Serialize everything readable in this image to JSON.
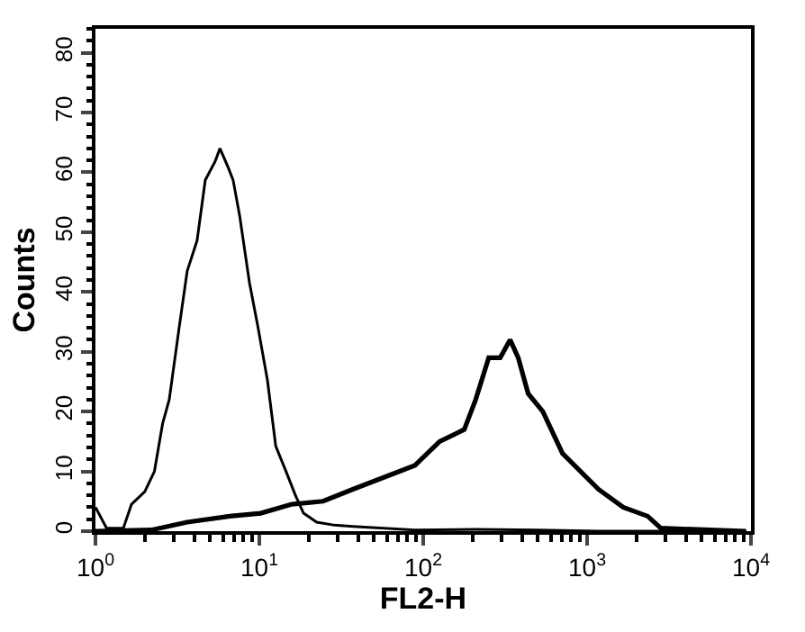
{
  "chart_data": {
    "type": "line",
    "xlabel": "FL2-H",
    "ylabel": "Counts",
    "log": "x",
    "marker": "none",
    "line_style": "solid",
    "xlim": [
      1,
      10000
    ],
    "xticks": [
      {
        "value": 1,
        "label": "10$^{0}$"
      },
      {
        "value": 10,
        "label": "10$^{1}$"
      },
      {
        "value": 100,
        "label": "10$^{2}$"
      },
      {
        "value": 1000,
        "label": "10$^{3}$"
      },
      {
        "value": 10000,
        "label": "10$^{4}$"
      }
    ],
    "ylim": [
      0,
      84
    ],
    "yticks": [
      0,
      10,
      20,
      30,
      40,
      50,
      60,
      70,
      80
    ],
    "series": [
      {
        "color": "#000000",
        "x": [
          1,
          1.17,
          1.48,
          1.66,
          2.0,
          2.29,
          2.57,
          2.82,
          3.24,
          3.63,
          4.17,
          4.68,
          5.37,
          5.75,
          6.46,
          6.92,
          7.59,
          8.71,
          9.77,
          11.2,
          12.6,
          14.5,
          16.6,
          18.6,
          22.4,
          28.8,
          37.2,
          89,
          209,
          501,
          1175,
          9333
        ],
        "values": [
          4,
          0.5,
          0.5,
          4.5,
          6.6,
          10,
          18,
          22,
          34,
          43.5,
          48.6,
          58.7,
          61.8,
          64,
          60.8,
          58.7,
          52.7,
          41.5,
          34.4,
          25.3,
          14.2,
          10.1,
          6,
          3,
          1.5,
          1,
          0.8,
          0.2,
          0.3,
          0.2,
          0,
          0
        ]
      },
      {
        "color": "#000000",
        "x": [
          1,
          2.19,
          3.63,
          6.6,
          10.2,
          15.8,
          24.5,
          37.2,
          57.5,
          89,
          126,
          178,
          209,
          251,
          295,
          339,
          380,
          437,
          537,
          708,
          912,
          1175,
          1660,
          2344,
          2818,
          9333
        ],
        "values": [
          0,
          0.2,
          1.5,
          2.5,
          3,
          4.5,
          5,
          7,
          9,
          11,
          15,
          17,
          22,
          29,
          29,
          32,
          29,
          23,
          20,
          13,
          10,
          7,
          4,
          2.5,
          0.5,
          0
        ]
      }
    ]
  }
}
